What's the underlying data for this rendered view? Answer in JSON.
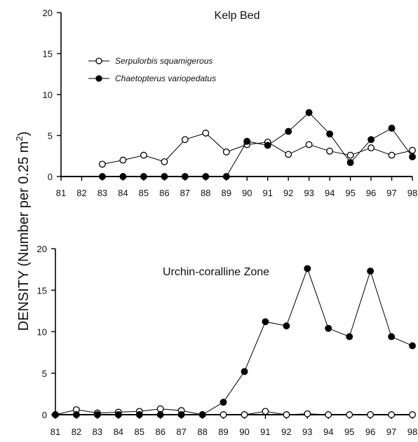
{
  "chart_data": [
    {
      "type": "line",
      "title": "Kelp Bed",
      "xlabel": "",
      "ylabel": "DENSITY (Number per 0.25 m²)",
      "x": [
        81,
        82,
        83,
        84,
        85,
        86,
        87,
        88,
        89,
        90,
        91,
        92,
        93,
        94,
        95,
        96,
        97,
        98
      ],
      "xlim": [
        81,
        98
      ],
      "ylim": [
        0,
        20
      ],
      "yticks": [
        0,
        5,
        10,
        15,
        20
      ],
      "legend_position": "upper-left",
      "series": [
        {
          "name": "Serpulorbis squamigerous",
          "marker": "open-circle",
          "x": [
            83,
            84,
            85,
            86,
            87,
            88,
            89,
            90,
            91,
            92,
            93,
            94,
            95,
            96,
            97,
            98
          ],
          "values": [
            1.5,
            2.0,
            2.6,
            1.8,
            4.5,
            5.3,
            3.0,
            3.9,
            4.2,
            2.7,
            3.9,
            3.1,
            2.6,
            3.5,
            2.6,
            3.2
          ]
        },
        {
          "name": "Chaetopterus variopedatus",
          "marker": "filled-circle",
          "x": [
            83,
            84,
            85,
            86,
            87,
            88,
            89,
            90,
            91,
            92,
            93,
            94,
            95,
            96,
            97,
            98
          ],
          "values": [
            0,
            0,
            0,
            0,
            0,
            0,
            0,
            4.3,
            3.8,
            5.5,
            7.8,
            5.2,
            1.7,
            4.5,
            5.9,
            2.4
          ]
        }
      ]
    },
    {
      "type": "line",
      "title": "Urchin-coralline Zone",
      "xlabel": "",
      "ylabel": "DENSITY (Number per 0.25 m²)",
      "x": [
        81,
        82,
        83,
        84,
        85,
        86,
        87,
        88,
        89,
        90,
        91,
        92,
        93,
        94,
        95,
        96,
        97,
        98
      ],
      "xlim": [
        81,
        98
      ],
      "ylim": [
        0,
        20
      ],
      "yticks": [
        0,
        5,
        10,
        15,
        20
      ],
      "series": [
        {
          "name": "Serpulorbis squamigerous",
          "marker": "open-circle",
          "x": [
            81,
            82,
            83,
            84,
            85,
            86,
            87,
            88,
            89,
            90,
            91,
            92,
            93,
            94,
            95,
            96,
            97,
            98
          ],
          "values": [
            0,
            0.6,
            0.2,
            0.3,
            0.4,
            0.7,
            0.5,
            0,
            0,
            0,
            0.4,
            0,
            0.1,
            0,
            0,
            0,
            0,
            0
          ]
        },
        {
          "name": "Chaetopterus variopedatus",
          "marker": "filled-circle",
          "x": [
            81,
            82,
            83,
            84,
            85,
            86,
            87,
            88,
            89,
            90,
            91,
            92,
            93,
            94,
            95,
            96,
            97,
            98
          ],
          "values": [
            0,
            0,
            0,
            0,
            0,
            0,
            0,
            0,
            1.5,
            5.2,
            11.2,
            10.7,
            17.6,
            10.4,
            9.4,
            17.3,
            9.4,
            8.3
          ]
        }
      ]
    }
  ],
  "figure": {
    "ylabel_main": "DENSITY (Number per 0.25 m",
    "ylabel_sup": "2",
    "ylabel_close": ")"
  }
}
